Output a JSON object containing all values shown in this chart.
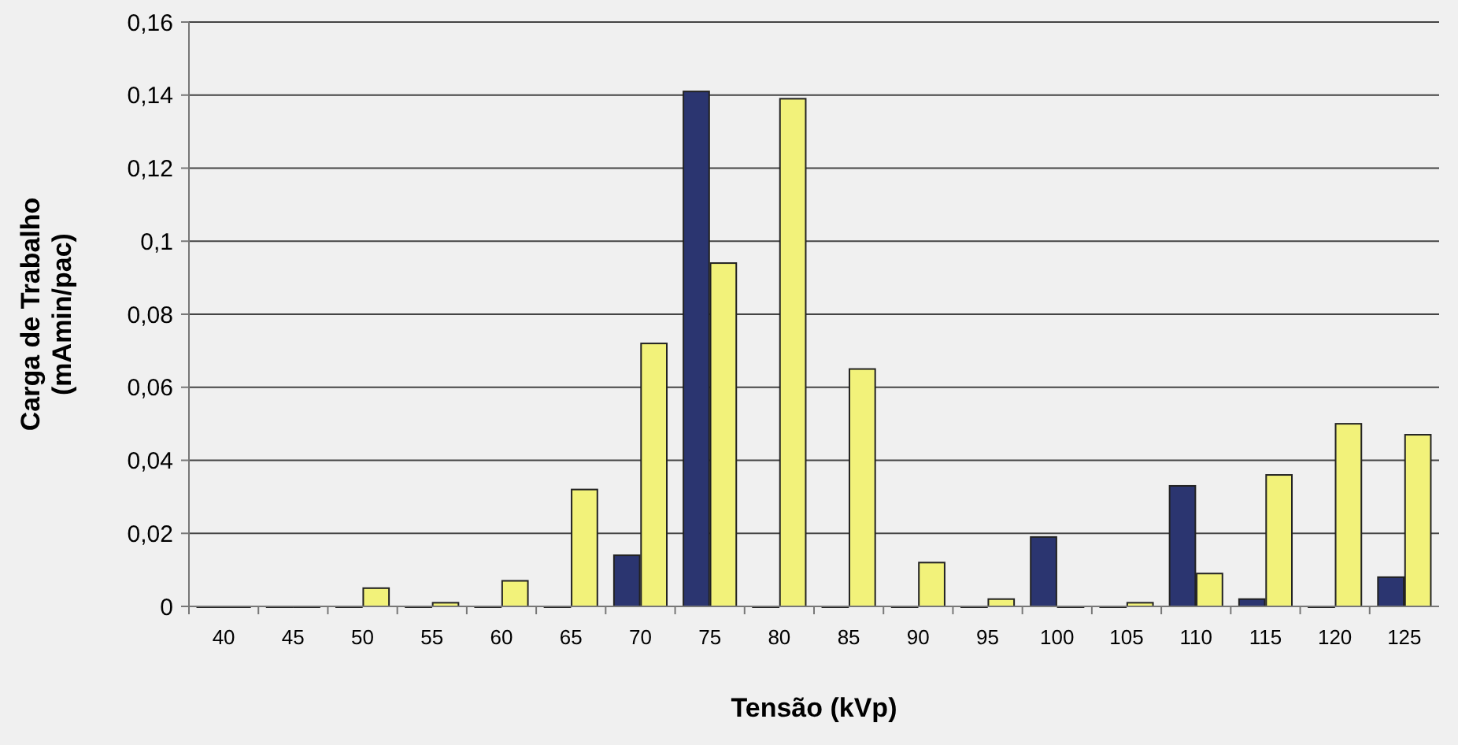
{
  "chart_data": {
    "type": "bar",
    "xlabel": "Tensão (kVp)",
    "ylabel": "Carga de Trabalho\n(mAmin/pac)",
    "categories": [
      "40",
      "45",
      "50",
      "55",
      "60",
      "65",
      "70",
      "75",
      "80",
      "85",
      "90",
      "95",
      "100",
      "105",
      "110",
      "115",
      "120",
      "125"
    ],
    "series": [
      {
        "color": "#2b3570",
        "values": [
          0,
          0,
          0,
          0,
          0,
          0,
          0.014,
          0.141,
          0,
          0,
          0,
          0,
          0.019,
          0,
          0.033,
          0.002,
          0,
          0.008
        ]
      },
      {
        "color": "#f2f27a",
        "values": [
          0,
          0,
          0.005,
          0.001,
          0.007,
          0.032,
          0.072,
          0.094,
          0.139,
          0.065,
          0.012,
          0.002,
          0,
          0.001,
          0.009,
          0.036,
          0.05,
          0.047
        ]
      }
    ],
    "ylim": [
      0,
      0.16
    ],
    "yticks": [
      {
        "value": 0,
        "label": "0"
      },
      {
        "value": 0.02,
        "label": "0,02"
      },
      {
        "value": 0.04,
        "label": "0,04"
      },
      {
        "value": 0.06,
        "label": "0,06"
      },
      {
        "value": 0.08,
        "label": "0,08"
      },
      {
        "value": 0.1,
        "label": "0,1"
      },
      {
        "value": 0.12,
        "label": "0,12"
      },
      {
        "value": 0.14,
        "label": "0,14"
      },
      {
        "value": 0.16,
        "label": "0,16"
      }
    ],
    "grid": "y"
  }
}
